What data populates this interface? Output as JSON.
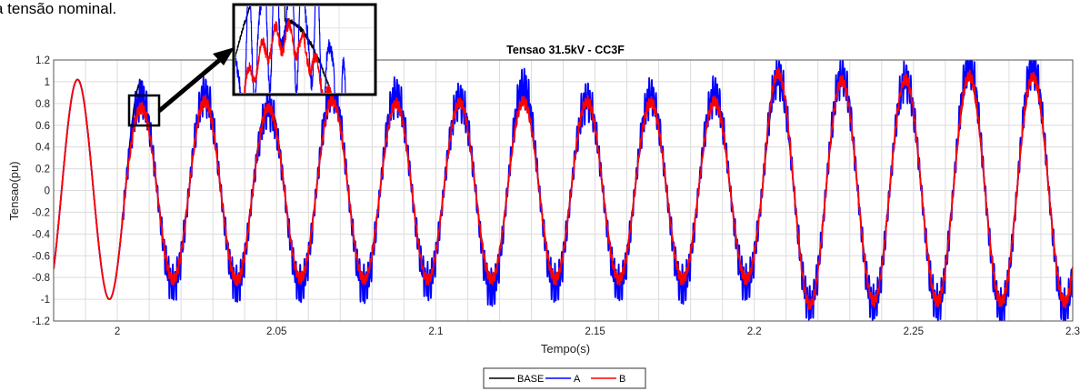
{
  "caption": "a tensão nominal.",
  "chart_data": {
    "type": "line",
    "title": "Tensao 31.5kV - CC3F",
    "xlabel": "Tempo(s)",
    "ylabel": "Tensao(pu)",
    "xlim": [
      1.98,
      2.3
    ],
    "ylim": [
      -1.2,
      1.2
    ],
    "xticks": [
      2,
      2.05,
      2.1,
      2.15,
      2.2,
      2.25,
      2.3
    ],
    "xtick_labels": [
      "2",
      "2.05",
      "2.1",
      "2.15",
      "2.2",
      "2.25",
      "2.3"
    ],
    "yticks": [
      1.2,
      1,
      0.8,
      0.6,
      0.4,
      0.2,
      0,
      -0.2,
      -0.4,
      -0.6,
      -0.8,
      -1,
      -1.2
    ],
    "ytick_labels": [
      "1.2",
      "1",
      "0.8",
      "0.6",
      "0.4",
      "0.2",
      "0",
      "-0.2",
      "-0.4",
      "-0.6",
      "-0.8",
      "-1",
      "-1.2"
    ],
    "grid": true,
    "legend_position": "bottom-center",
    "frequency_hz": 50,
    "fault_start_s": 2.0,
    "series": [
      {
        "name": "BASE",
        "color": "#000000",
        "peaks": [
          {
            "t": 1.9875,
            "v": 1.02
          },
          {
            "t": 2.0275,
            "v": 0.82
          },
          {
            "t": 2.0475,
            "v": 0.81
          },
          {
            "t": 2.0675,
            "v": 0.83
          },
          {
            "t": 2.0875,
            "v": 0.8
          },
          {
            "t": 2.1075,
            "v": 0.81
          },
          {
            "t": 2.1275,
            "v": 0.82
          },
          {
            "t": 2.1475,
            "v": 0.82
          },
          {
            "t": 2.1675,
            "v": 0.81
          },
          {
            "t": 2.1875,
            "v": 0.82
          },
          {
            "t": 2.2075,
            "v": 0.98
          },
          {
            "t": 2.2275,
            "v": 1.0
          },
          {
            "t": 2.2475,
            "v": 1.0
          },
          {
            "t": 2.2675,
            "v": 1.02
          },
          {
            "t": 2.2875,
            "v": 1.03
          }
        ],
        "troughs": [
          {
            "t": 1.9975,
            "v": -1.0
          },
          {
            "t": 2.0175,
            "v": -0.81
          },
          {
            "t": 2.0375,
            "v": -0.82
          },
          {
            "t": 2.0575,
            "v": -0.8
          },
          {
            "t": 2.0775,
            "v": -0.81
          },
          {
            "t": 2.0975,
            "v": -0.8
          },
          {
            "t": 2.1175,
            "v": -0.81
          },
          {
            "t": 2.1375,
            "v": -0.8
          },
          {
            "t": 2.1575,
            "v": -0.8
          },
          {
            "t": 2.1775,
            "v": -0.8
          },
          {
            "t": 2.1975,
            "v": -0.8
          },
          {
            "t": 2.2175,
            "v": -1.02
          },
          {
            "t": 2.2375,
            "v": -1.0
          },
          {
            "t": 2.2575,
            "v": -1.0
          },
          {
            "t": 2.2775,
            "v": -1.02
          },
          {
            "t": 2.2975,
            "v": -1.02
          }
        ]
      },
      {
        "name": "A",
        "color": "#0000ff",
        "peaks": [
          {
            "t": 1.9875,
            "v": 1.02
          },
          {
            "t": 2.0075,
            "v": 0.85
          },
          {
            "t": 2.0275,
            "v": 0.88
          },
          {
            "t": 2.0475,
            "v": 0.75
          },
          {
            "t": 2.0675,
            "v": 0.92
          },
          {
            "t": 2.0875,
            "v": 0.88
          },
          {
            "t": 2.1075,
            "v": 0.83
          },
          {
            "t": 2.1275,
            "v": 0.95
          },
          {
            "t": 2.1475,
            "v": 0.83
          },
          {
            "t": 2.1675,
            "v": 0.86
          },
          {
            "t": 2.1875,
            "v": 0.88
          },
          {
            "t": 2.2075,
            "v": 1.05
          },
          {
            "t": 2.2275,
            "v": 1.05
          },
          {
            "t": 2.2475,
            "v": 1.02
          },
          {
            "t": 2.2675,
            "v": 1.15
          },
          {
            "t": 2.2875,
            "v": 1.15
          }
        ],
        "troughs": [
          {
            "t": 1.9975,
            "v": -1.0
          },
          {
            "t": 2.0175,
            "v": -0.86
          },
          {
            "t": 2.0375,
            "v": -0.87
          },
          {
            "t": 2.0575,
            "v": -0.88
          },
          {
            "t": 2.0775,
            "v": -0.88
          },
          {
            "t": 2.0975,
            "v": -0.85
          },
          {
            "t": 2.1175,
            "v": -0.92
          },
          {
            "t": 2.1375,
            "v": -0.88
          },
          {
            "t": 2.1575,
            "v": -0.88
          },
          {
            "t": 2.1775,
            "v": -0.88
          },
          {
            "t": 2.1975,
            "v": -0.86
          },
          {
            "t": 2.2175,
            "v": -1.05
          },
          {
            "t": 2.2375,
            "v": -1.05
          },
          {
            "t": 2.2575,
            "v": -1.05
          },
          {
            "t": 2.2775,
            "v": -1.08
          },
          {
            "t": 2.2975,
            "v": -1.08
          }
        ]
      },
      {
        "name": "B",
        "color": "#ff0000",
        "peaks": [
          {
            "t": 1.9875,
            "v": 1.02
          },
          {
            "t": 2.0075,
            "v": 0.76
          },
          {
            "t": 2.0275,
            "v": 0.82
          },
          {
            "t": 2.0475,
            "v": 0.76
          },
          {
            "t": 2.0675,
            "v": 0.83
          },
          {
            "t": 2.0875,
            "v": 0.8
          },
          {
            "t": 2.1075,
            "v": 0.81
          },
          {
            "t": 2.1275,
            "v": 0.82
          },
          {
            "t": 2.1475,
            "v": 0.82
          },
          {
            "t": 2.1675,
            "v": 0.81
          },
          {
            "t": 2.1875,
            "v": 0.82
          },
          {
            "t": 2.2075,
            "v": 1.08
          },
          {
            "t": 2.2275,
            "v": 1.01
          },
          {
            "t": 2.2475,
            "v": 1.02
          },
          {
            "t": 2.2675,
            "v": 1.05
          },
          {
            "t": 2.2875,
            "v": 1.05
          }
        ],
        "troughs": [
          {
            "t": 1.9975,
            "v": -1.0
          },
          {
            "t": 2.0175,
            "v": -0.82
          },
          {
            "t": 2.0375,
            "v": -0.83
          },
          {
            "t": 2.0575,
            "v": -0.81
          },
          {
            "t": 2.0775,
            "v": -0.82
          },
          {
            "t": 2.0975,
            "v": -0.82
          },
          {
            "t": 2.1175,
            "v": -0.82
          },
          {
            "t": 2.1375,
            "v": -0.82
          },
          {
            "t": 2.1575,
            "v": -0.82
          },
          {
            "t": 2.1775,
            "v": -0.82
          },
          {
            "t": 2.1975,
            "v": -0.82
          },
          {
            "t": 2.2175,
            "v": -1.05
          },
          {
            "t": 2.2375,
            "v": -1.02
          },
          {
            "t": 2.2575,
            "v": -1.02
          },
          {
            "t": 2.2775,
            "v": -1.03
          },
          {
            "t": 2.2975,
            "v": -1.03
          }
        ]
      }
    ],
    "zoom_inset": {
      "xlim": [
        2.005,
        2.012
      ],
      "ylim": [
        0.6,
        0.85
      ]
    }
  }
}
